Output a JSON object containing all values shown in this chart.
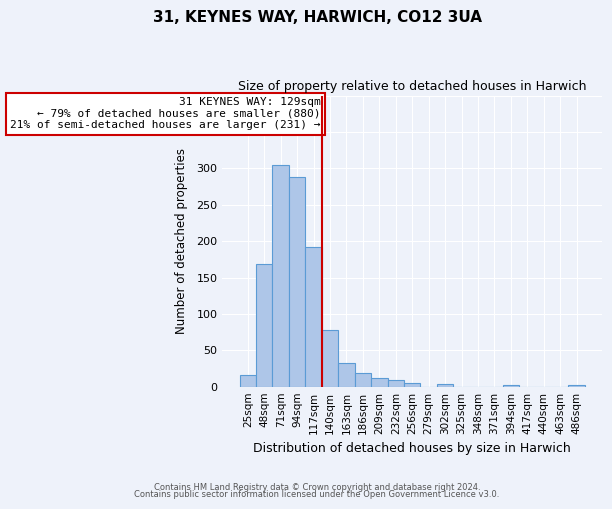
{
  "title": "31, KEYNES WAY, HARWICH, CO12 3UA",
  "subtitle": "Size of property relative to detached houses in Harwich",
  "xlabel": "Distribution of detached houses by size in Harwich",
  "ylabel": "Number of detached properties",
  "categories": [
    "25sqm",
    "48sqm",
    "71sqm",
    "94sqm",
    "117sqm",
    "140sqm",
    "163sqm",
    "186sqm",
    "209sqm",
    "232sqm",
    "256sqm",
    "279sqm",
    "302sqm",
    "325sqm",
    "348sqm",
    "371sqm",
    "394sqm",
    "417sqm",
    "440sqm",
    "463sqm",
    "486sqm"
  ],
  "values": [
    16,
    168,
    305,
    288,
    192,
    78,
    32,
    19,
    12,
    9,
    5,
    0,
    3,
    0,
    0,
    0,
    2,
    0,
    0,
    0,
    2
  ],
  "bar_color": "#aec6e8",
  "bar_edgecolor": "#5b9bd5",
  "annotation_title": "31 KEYNES WAY: 129sqm",
  "annotation_line1": "← 79% of detached houses are smaller (880)",
  "annotation_line2": "21% of semi-detached houses are larger (231) →",
  "annotation_box_color": "#cc0000",
  "ylim": [
    0,
    400
  ],
  "yticks": [
    0,
    50,
    100,
    150,
    200,
    250,
    300,
    350,
    400
  ],
  "footer_line1": "Contains HM Land Registry data © Crown copyright and database right 2024.",
  "footer_line2": "Contains public sector information licensed under the Open Government Licence v3.0.",
  "background_color": "#eef2fa",
  "plot_background": "#eef2fa"
}
